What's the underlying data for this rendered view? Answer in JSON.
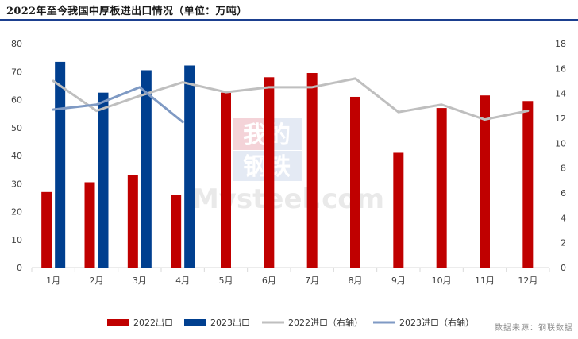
{
  "chart_data": {
    "type": "bar",
    "title": "2022年至今我国中厚板进出口情况（单位：万吨）",
    "categories": [
      "1月",
      "2月",
      "3月",
      "4月",
      "5月",
      "6月",
      "7月",
      "8月",
      "9月",
      "10月",
      "11月",
      "12月"
    ],
    "left_axis": {
      "ylim": [
        0,
        80
      ],
      "ticks": [
        "0",
        "10",
        "20",
        "30",
        "40",
        "50",
        "60",
        "70",
        "80"
      ]
    },
    "right_axis": {
      "ylim": [
        0,
        18
      ],
      "ticks": [
        "0",
        "2",
        "4",
        "6",
        "8",
        "10",
        "12",
        "14",
        "16",
        "18"
      ]
    },
    "bar_series": [
      {
        "name": "2022出口",
        "color": "#c00000",
        "values": [
          27.0,
          30.5,
          33.0,
          26.0,
          62.5,
          68.0,
          69.5,
          61.0,
          41.0,
          57.0,
          61.5,
          59.5
        ]
      },
      {
        "name": "2023出口",
        "color": "#003f8f",
        "values": [
          73.5,
          62.5,
          70.5,
          72.2,
          null,
          null,
          null,
          null,
          null,
          null,
          null,
          null
        ]
      }
    ],
    "line_series": [
      {
        "name": "2022进口（右轴）",
        "color": "#bfbfbf",
        "axis": "right",
        "values": [
          15.0,
          12.6,
          13.8,
          14.9,
          14.1,
          14.5,
          14.5,
          15.2,
          12.5,
          13.1,
          11.9,
          12.6
        ]
      },
      {
        "name": "2023进口（右轴）",
        "color": "#7f9ac4",
        "axis": "right",
        "values": [
          12.7,
          13.1,
          14.5,
          11.7,
          null,
          null,
          null,
          null,
          null,
          null,
          null,
          null
        ]
      }
    ],
    "legend": [
      {
        "name": "2022出口",
        "kind": "bar",
        "color": "#c00000"
      },
      {
        "name": "2023出口",
        "kind": "bar",
        "color": "#003f8f"
      },
      {
        "name": "2022进口（右轴）",
        "kind": "line",
        "color": "#bfbfbf"
      },
      {
        "name": "2023进口（右轴）",
        "kind": "line",
        "color": "#7f9ac4"
      }
    ],
    "legend_position": "bottom",
    "grid": false
  },
  "watermark": {
    "top": "我的",
    "middle": "钢铁",
    "bottom": "Mysteel.com"
  },
  "source": "数据来源：钢联数据"
}
